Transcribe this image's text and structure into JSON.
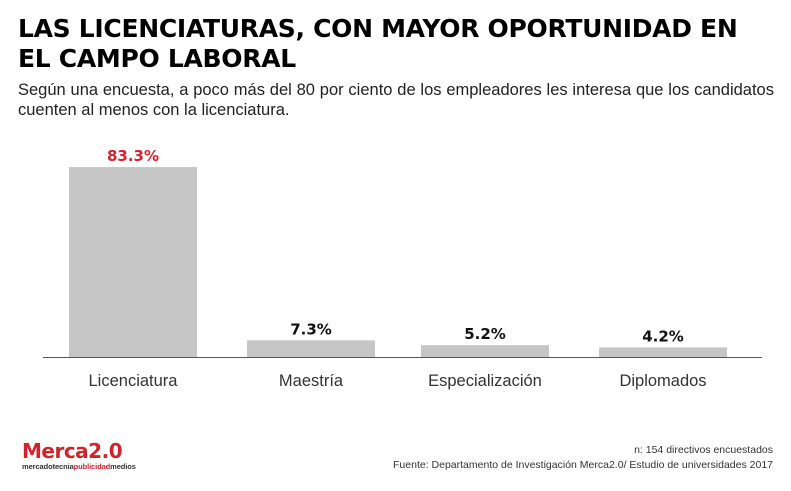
{
  "header": {
    "title": "LAS LICENCIATURAS, CON MAYOR OPORTUNIDAD EN EL CAMPO LABORAL",
    "subtitle": "Según una encuesta, a poco más del 80 por ciento de los empleadores les interesa que los candidatos cuenten al menos con la licenciatura."
  },
  "chart_data": {
    "type": "bar",
    "categories": [
      "Licenciatura",
      "Maestría",
      "Especialización",
      "Diplomados"
    ],
    "values": [
      83.3,
      7.3,
      5.2,
      4.2
    ],
    "value_labels": [
      "83.3%",
      "7.3%",
      "5.2%",
      "4.2%"
    ],
    "title": "",
    "xlabel": "",
    "ylabel": "",
    "ylim": [
      0,
      100
    ],
    "grid": false,
    "bar_color": "#c6c6c6",
    "highlight_label_color": "#d0232c",
    "label_color": "#111111",
    "axis_color": "#555555"
  },
  "footer": {
    "brand": {
      "name": "Merca2.0",
      "tag_part1": "mercadotecnia",
      "tag_part2": "publicidad",
      "tag_part3": "medios",
      "accent_color": "#d0232c"
    },
    "note": "n: 154 directivos encuestados",
    "source": "Fuente: Departamento de Investigación Merca2.0/ Estudio de universidades 2017"
  }
}
